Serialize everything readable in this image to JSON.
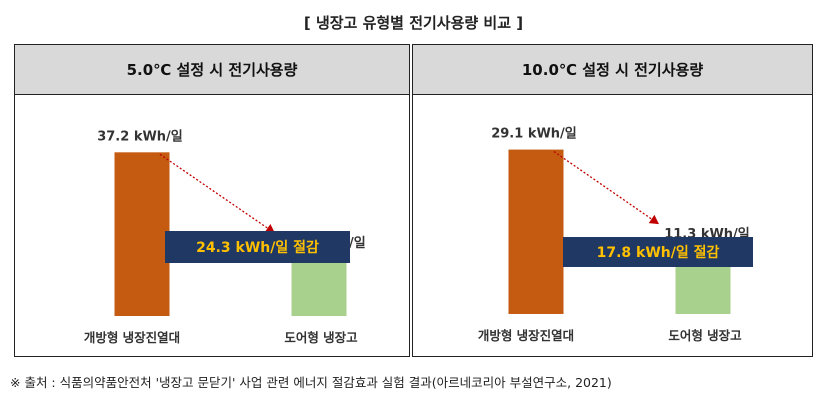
{
  "title": "[ 냉장고 유형별 전기사용량 비교 ]",
  "source": "※ 출처 : 식품의약품안전처 '냉장고 문닫기' 사업 관련 에너지 절감효과 실험 결과(아르네코리아 부설연구소, 2021)",
  "colors": {
    "open": "#c55a11",
    "door": "#a9d18e",
    "savings_box": "#1f3864",
    "savings_text": "#ffc000",
    "arrow": "#c00000"
  },
  "chart_data": [
    {
      "type": "bar",
      "title": "5.0℃ 설정 시 전기사용량",
      "categories": [
        "개방형 냉장진열대",
        "도어형 냉장고"
      ],
      "values": [
        37.2,
        12.9
      ],
      "value_labels": [
        "37.2 kWh/일",
        "12.9 kWh/일"
      ],
      "savings_label": "24.3 kWh/일 절감",
      "ylim": [
        0,
        50
      ],
      "grid": false
    },
    {
      "type": "bar",
      "title": "10.0℃ 설정 시 전기사용량",
      "categories": [
        "개방형 냉장진열대",
        "도어형 냉장고"
      ],
      "values": [
        29.1,
        11.3
      ],
      "value_labels": [
        "29.1 kWh/일",
        "11.3 kWh/일"
      ],
      "savings_label": "17.8 kWh/일 절감",
      "ylim": [
        0,
        40
      ],
      "grid": false
    }
  ]
}
